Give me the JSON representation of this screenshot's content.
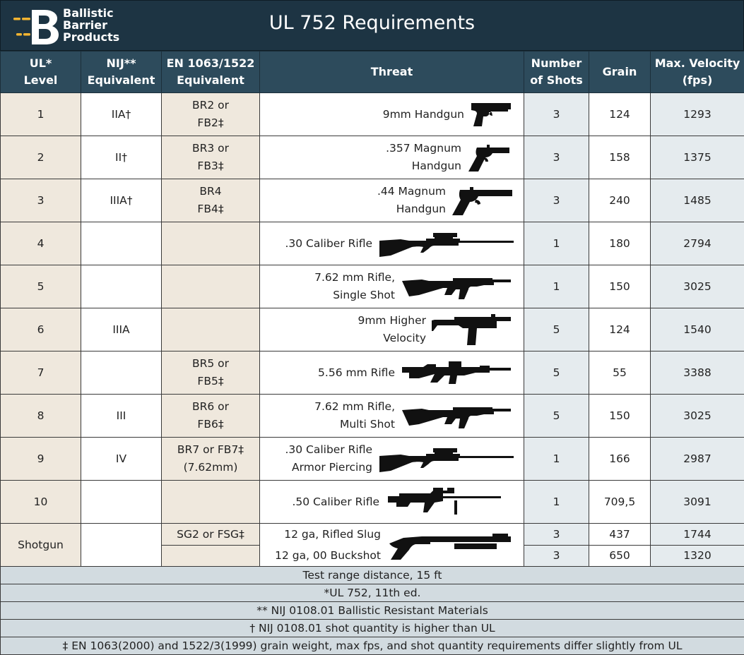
{
  "header": {
    "logo_lines": [
      "Ballistic",
      "Barrier",
      "Products"
    ],
    "title": "UL 752 Requirements"
  },
  "columns": {
    "ul_level": [
      "UL*",
      "Level"
    ],
    "nij": [
      "NIJ**",
      "Equivalent"
    ],
    "en": [
      "EN 1063/1522",
      "Equivalent"
    ],
    "threat": "Threat",
    "shots": [
      "Number",
      "of Shots"
    ],
    "grain": "Grain",
    "velocity": [
      "Max. Velocity",
      "(fps)"
    ]
  },
  "rows": [
    {
      "level": "1",
      "nij": "IIA†",
      "en": [
        "BR2 or",
        "FB2‡"
      ],
      "threat": [
        "9mm Handgun"
      ],
      "icon": "pistol-icon",
      "shots": "3",
      "grain": "124",
      "velocity": "1293"
    },
    {
      "level": "2",
      "nij": "II†",
      "en": [
        "BR3 or",
        "FB3‡"
      ],
      "threat": [
        ".357 Magnum",
        "Handgun"
      ],
      "icon": "revolver-icon",
      "shots": "3",
      "grain": "158",
      "velocity": "1375"
    },
    {
      "level": "3",
      "nij": "IIIA†",
      "en": [
        "BR4",
        "FB4‡"
      ],
      "threat": [
        ".44 Magnum",
        "Handgun"
      ],
      "icon": "long-revolver-icon",
      "shots": "3",
      "grain": "240",
      "velocity": "1485"
    },
    {
      "level": "4",
      "nij": "",
      "en": [
        "",
        ""
      ],
      "threat": [
        ".30 Caliber Rifle"
      ],
      "icon": "scoped-rifle-icon",
      "shots": "1",
      "grain": "180",
      "velocity": "2794"
    },
    {
      "level": "5",
      "nij": "",
      "en": [
        "",
        ""
      ],
      "threat": [
        "7.62 mm Rifle,",
        "Single Shot"
      ],
      "icon": "ak-rifle-icon",
      "shots": "1",
      "grain": "150",
      "velocity": "3025"
    },
    {
      "level": "6",
      "nij": "IIIA",
      "en": [
        "",
        ""
      ],
      "threat": [
        "9mm Higher",
        "Velocity"
      ],
      "icon": "uzi-icon",
      "shots": "5",
      "grain": "124",
      "velocity": "1540"
    },
    {
      "level": "7",
      "nij": "",
      "en": [
        "BR5 or",
        "FB5‡"
      ],
      "threat": [
        "5.56 mm Rifle"
      ],
      "icon": "ar-rifle-icon",
      "shots": "5",
      "grain": "55",
      "velocity": "3388"
    },
    {
      "level": "8",
      "nij": "III",
      "en": [
        "BR6 or",
        "FB6‡"
      ],
      "threat": [
        "7.62 mm Rifle,",
        "Multi Shot"
      ],
      "icon": "ak-rifle-icon",
      "shots": "5",
      "grain": "150",
      "velocity": "3025"
    },
    {
      "level": "9",
      "nij": "IV",
      "en": [
        "BR7 or FB7‡",
        "(7.62mm)"
      ],
      "threat": [
        ".30 Caliber Rifle",
        "Armor Piercing"
      ],
      "icon": "scoped-rifle-icon",
      "shots": "1",
      "grain": "166",
      "velocity": "2987"
    },
    {
      "level": "10",
      "nij": "",
      "en": [
        "",
        ""
      ],
      "threat": [
        ".50 Caliber Rifle"
      ],
      "icon": "sniper-rifle-icon",
      "shots": "1",
      "grain": "709,5",
      "velocity": "3091"
    }
  ],
  "shotgun": {
    "level": "Shotgun",
    "nij": "",
    "icon": "shotgun-icon",
    "rows": [
      {
        "en": "SG2 or FSG‡",
        "threat": "12 ga, Rifled Slug",
        "shots": "3",
        "grain": "437",
        "velocity": "1744"
      },
      {
        "en": "",
        "threat": "12 ga, 00 Buckshot",
        "shots": "3",
        "grain": "650",
        "velocity": "1320"
      }
    ]
  },
  "footnotes": [
    "Test range distance, 15 ft",
    "*UL 752, 11th ed.",
    "** NIJ 0108.01 Ballistic Resistant Materials",
    "† NIJ 0108.01 shot quantity is higher than UL",
    "‡ EN 1063(2000) and 1522/3(1999) grain weight, max fps, and shot quantity requirements differ slightly from UL"
  ],
  "colors": {
    "header_bg": "#1d3443",
    "table_header_bg": "#2d4b5c",
    "beige_cell": "#efe8dd",
    "blue_cell": "#e5ebee",
    "footnote_bg": "#d2dbe0",
    "logo_accent": "#f2b431"
  }
}
